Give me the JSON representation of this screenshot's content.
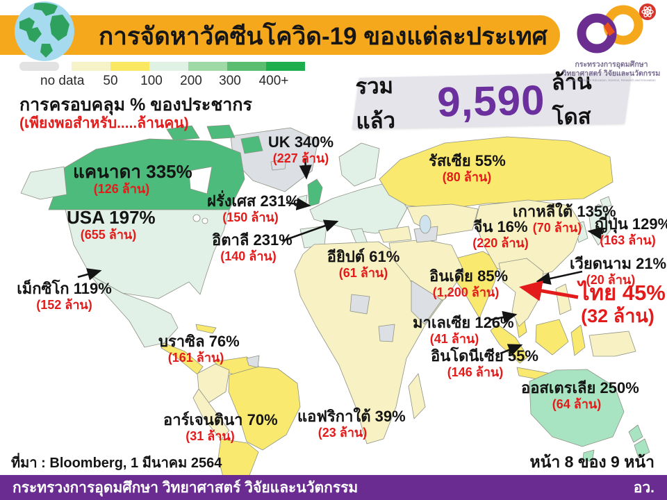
{
  "header": {
    "title": "การจัดหาวัคซีนโควิด-19 ของแต่ละประเทศ"
  },
  "logo": {
    "line1": "กระทรวงการอุดมศึกษา",
    "line2": "วิทยาศาสตร์ วิจัยและนวัตกรรม",
    "line3": "Ministry of Higher Education, Science, Research and Innovation"
  },
  "legend": {
    "swatches": [
      "#E2E2E2",
      "#F7F3C9",
      "#FAE863",
      "#DFF2E3",
      "#9FD9A6",
      "#5BBD6F",
      "#1EAE4D"
    ],
    "labels": [
      "no data",
      "50",
      "100",
      "200",
      "300",
      "400+"
    ]
  },
  "coverage": {
    "line1": "การครอบคลุม % ของประชากร",
    "line2": "(เพียงพอสำหรับ.....ล้านคน)"
  },
  "total": {
    "prefix": "รวมแล้ว",
    "value": "9,590",
    "suffix": "ล้านโดส"
  },
  "map": {
    "labels": [
      {
        "country": "แคนาดา",
        "percent": "335%",
        "doses": "(126 ล้าน)"
      },
      {
        "country": "USA",
        "percent": "197%",
        "doses": "(655 ล้าน)"
      },
      {
        "country": "เม็กซิโก",
        "percent": "119%",
        "doses": "(152 ล้าน)"
      },
      {
        "country": "UK",
        "percent": "340%",
        "doses": "(227 ล้าน)"
      },
      {
        "country": "ฝรั่งเศส",
        "percent": "231%",
        "doses": "(150 ล้าน)"
      },
      {
        "country": "อิตาลี",
        "percent": "231%",
        "doses": "(140 ล้าน)"
      },
      {
        "country": "อียิปต์",
        "percent": "61%",
        "doses": "(61 ล้าน)"
      },
      {
        "country": "รัสเซีย",
        "percent": "55%",
        "doses": "(80 ล้าน)"
      },
      {
        "country": "จีน",
        "percent": "16%",
        "doses": "(220 ล้าน)"
      },
      {
        "country": "เกาหลีใต้",
        "percent": "135%",
        "doses": "(70 ล้าน)"
      },
      {
        "country": "ญี่ปุ่น",
        "percent": "129%",
        "doses": "(163 ล้าน)"
      },
      {
        "country": "เวียดนาม",
        "percent": "21%",
        "doses": "(20 ล้าน)"
      },
      {
        "country": "ไทย",
        "percent": "45%",
        "doses": "(32 ล้าน)"
      },
      {
        "country": "อินเดีย",
        "percent": "85%",
        "doses": "(1,200 ล้าน)"
      },
      {
        "country": "มาเลเซีย",
        "percent": "126%",
        "doses": "(41 ล้าน)"
      },
      {
        "country": "อินโดนีเซีย",
        "percent": "55%",
        "doses": "(146 ล้าน)"
      },
      {
        "country": "ออสเตรเลีย",
        "percent": "250%",
        "doses": "(64 ล้าน)"
      },
      {
        "country": "บราซิล",
        "percent": "76%",
        "doses": "(161 ล้าน)"
      },
      {
        "country": "อาร์เจนตินา",
        "percent": "70%",
        "doses": "(31 ล้าน)"
      },
      {
        "country": "แอฟริกาใต้",
        "percent": "39%",
        "doses": "(23 ล้าน)"
      }
    ]
  },
  "source": "ที่มา : Bloomberg, 1 มีนาคม 2564",
  "page_indicator": "หน้า 8 ของ 9 หน้า",
  "footer": {
    "left": "กระทรวงการอุดมศึกษา วิทยาศาสตร์ วิจัยและนวัตกรรม",
    "right": "อว."
  },
  "colors": {
    "header_bar": "#F5A81C",
    "footer_bar": "#6A2C91",
    "total_value": "#6B2F9E",
    "highlight_red": "#E31B1B",
    "map_no_data": "#DCDFE3",
    "map_pale_yellow": "#F7F1C3",
    "map_bright_yellow": "#F9E96E",
    "map_pale_mint": "#E1F1E7",
    "map_light_green": "#A9E4C2",
    "map_green": "#4DBB7B"
  }
}
